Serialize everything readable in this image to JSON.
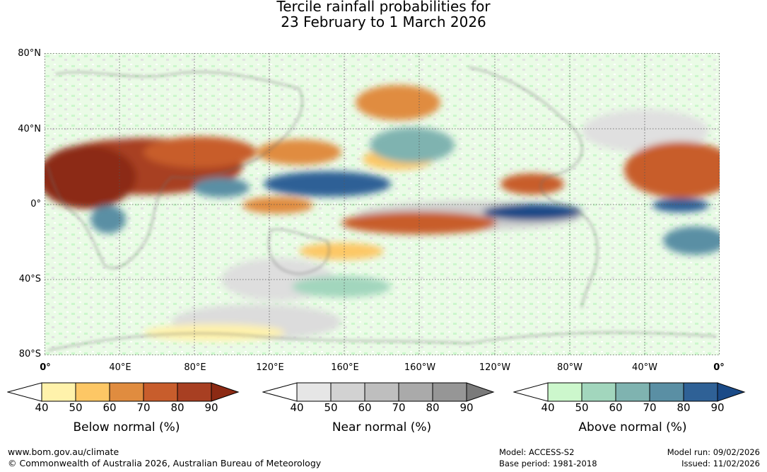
{
  "title": {
    "line1": "Tercile rainfall probabilities for",
    "line2": "23 February to 1 March 2026"
  },
  "map": {
    "lat_labels": [
      "80°N",
      "40°N",
      "0°",
      "40°S",
      "80°S"
    ],
    "lon_labels": [
      "0°",
      "40°E",
      "80°E",
      "120°E",
      "160°E",
      "160°W",
      "120°W",
      "80°W",
      "40°W",
      "0°"
    ]
  },
  "legends": [
    {
      "caption": "Below normal (%)",
      "ticks": [
        "40",
        "50",
        "60",
        "70",
        "80",
        "90"
      ],
      "colors": [
        "#fff2ab",
        "#fdc765",
        "#e08c3f",
        "#c85d2c",
        "#a83f22",
        "#8c2a14"
      ]
    },
    {
      "caption": "Near normal (%)",
      "ticks": [
        "40",
        "50",
        "60",
        "70",
        "80",
        "90"
      ],
      "colors": [
        "#e6e6e6",
        "#d2d2d2",
        "#bebebe",
        "#aaaaaa",
        "#969696",
        "#7a7a7a"
      ]
    },
    {
      "caption": "Above normal (%)",
      "ticks": [
        "40",
        "50",
        "60",
        "70",
        "80",
        "90"
      ],
      "colors": [
        "#ccf7cc",
        "#a2d6bd",
        "#7fb3b0",
        "#5a8fa4",
        "#2f6196",
        "#1a4a87"
      ]
    }
  ],
  "footer": {
    "url": "www.bom.gov.au/climate",
    "copyright": "© Commonwealth of Australia 2026, Australian Bureau of Meteorology",
    "model": "Model: ACCESS-S2",
    "base_period": "Base period: 1981-2018",
    "model_run": "Model run: 09/02/2026",
    "issued": "Issued: 11/02/2026"
  }
}
